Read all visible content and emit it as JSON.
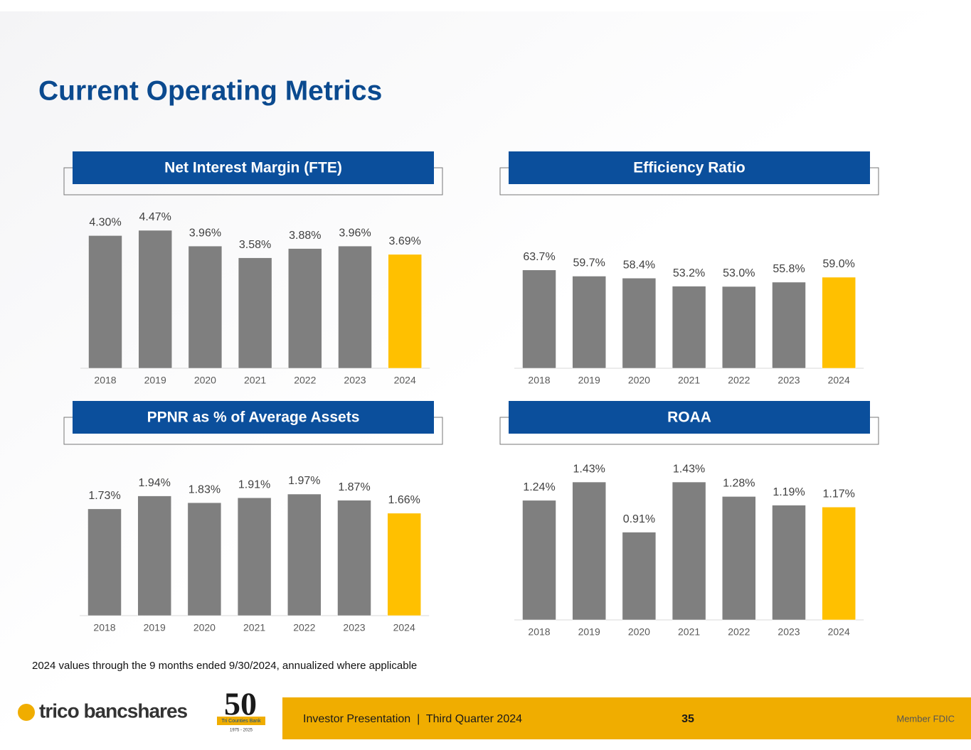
{
  "page_title": "Current Operating Metrics",
  "footnote": "2024 values through the 9 months ended 9/30/2024, annualized where applicable",
  "footer": {
    "logo": "trico bancshares",
    "badge": "50",
    "badge_ribbon": "Tri Counties Bank",
    "badge_years": "1975 - 2025",
    "presentation": "Investor Presentation  |  Third Quarter 2024",
    "page_number": "35",
    "member": "Member FDIC"
  },
  "chart_data": [
    {
      "type": "bar",
      "title": "Net Interest Margin (FTE)",
      "categories": [
        "2018",
        "2019",
        "2020",
        "2021",
        "2022",
        "2023",
        "2024"
      ],
      "values": [
        4.3,
        4.47,
        3.96,
        3.58,
        3.88,
        3.96,
        3.69
      ],
      "value_labels": [
        "4.30%",
        "4.47%",
        "3.96%",
        "3.58%",
        "3.88%",
        "3.96%",
        "3.69%"
      ],
      "colors": [
        "#7f7f7f",
        "#7f7f7f",
        "#7f7f7f",
        "#7f7f7f",
        "#7f7f7f",
        "#7f7f7f",
        "#ffc000"
      ],
      "ylim": [
        0,
        5
      ]
    },
    {
      "type": "bar",
      "title": "Efficiency Ratio",
      "categories": [
        "2018",
        "2019",
        "2020",
        "2021",
        "2022",
        "2023",
        "2024"
      ],
      "values": [
        63.7,
        59.7,
        58.4,
        53.2,
        53.0,
        55.8,
        59.0
      ],
      "value_labels": [
        "63.7%",
        "59.7%",
        "58.4%",
        "53.2%",
        "53.0%",
        "55.8%",
        "59.0%"
      ],
      "colors": [
        "#7f7f7f",
        "#7f7f7f",
        "#7f7f7f",
        "#7f7f7f",
        "#7f7f7f",
        "#7f7f7f",
        "#ffc000"
      ],
      "ylim": [
        0,
        100
      ]
    },
    {
      "type": "bar",
      "title": "PPNR as % of Average Assets",
      "categories": [
        "2018",
        "2019",
        "2020",
        "2021",
        "2022",
        "2023",
        "2024"
      ],
      "values": [
        1.73,
        1.94,
        1.83,
        1.91,
        1.97,
        1.87,
        1.66
      ],
      "value_labels": [
        "1.73%",
        "1.94%",
        "1.83%",
        "1.91%",
        "1.97%",
        "1.87%",
        "1.66%"
      ],
      "colors": [
        "#7f7f7f",
        "#7f7f7f",
        "#7f7f7f",
        "#7f7f7f",
        "#7f7f7f",
        "#7f7f7f",
        "#ffc000"
      ],
      "ylim": [
        0,
        2.5
      ]
    },
    {
      "type": "bar",
      "title": "ROAA",
      "categories": [
        "2018",
        "2019",
        "2020",
        "2021",
        "2022",
        "2023",
        "2024"
      ],
      "values": [
        1.24,
        1.43,
        0.91,
        1.43,
        1.28,
        1.19,
        1.17
      ],
      "value_labels": [
        "1.24%",
        "1.43%",
        "0.91%",
        "1.43%",
        "1.28%",
        "1.19%",
        "1.17%"
      ],
      "colors": [
        "#7f7f7f",
        "#7f7f7f",
        "#7f7f7f",
        "#7f7f7f",
        "#7f7f7f",
        "#7f7f7f",
        "#ffc000"
      ],
      "ylim": [
        0,
        1.6
      ]
    }
  ]
}
